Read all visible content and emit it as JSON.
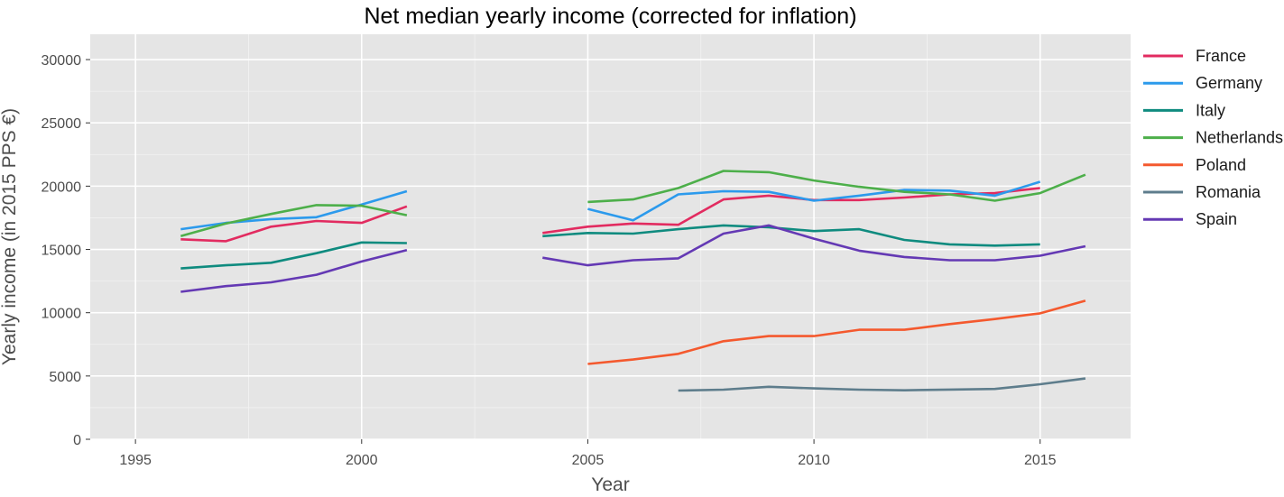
{
  "chart_data": {
    "type": "line",
    "title": "Net median yearly income (corrected for inflation)",
    "xlabel": "Year",
    "ylabel": "Yearly income (in 2015 PPS €)",
    "xlim": [
      1994,
      2017
    ],
    "ylim": [
      0,
      32000
    ],
    "x_ticks": [
      1995,
      2000,
      2005,
      2010,
      2015
    ],
    "y_ticks": [
      0,
      5000,
      10000,
      15000,
      20000,
      25000,
      30000
    ],
    "grid": true,
    "legend_position": "right",
    "series": [
      {
        "name": "France",
        "color": "#e22b60",
        "x": [
          1996,
          1997,
          1998,
          1999,
          2000,
          2001,
          2004,
          2005,
          2006,
          2007,
          2008,
          2009,
          2010,
          2011,
          2012,
          2013,
          2014,
          2015
        ],
        "values": [
          15800,
          15650,
          16800,
          17250,
          17100,
          18400,
          16300,
          16800,
          17050,
          16950,
          18950,
          19250,
          18900,
          18900,
          19100,
          19350,
          19450,
          19850
        ]
      },
      {
        "name": "Germany",
        "color": "#2c9aec",
        "x": [
          1996,
          1997,
          1998,
          1999,
          2000,
          2001,
          2005,
          2006,
          2007,
          2008,
          2009,
          2010,
          2011,
          2012,
          2013,
          2014,
          2015
        ],
        "values": [
          16600,
          17100,
          17400,
          17550,
          18550,
          19600,
          18200,
          17300,
          19350,
          19600,
          19550,
          18850,
          19250,
          19700,
          19650,
          19250,
          20350
        ]
      },
      {
        "name": "Italy",
        "color": "#0f8b7f",
        "x": [
          1996,
          1997,
          1998,
          1999,
          2000,
          2001,
          2004,
          2005,
          2006,
          2007,
          2008,
          2009,
          2010,
          2011,
          2012,
          2013,
          2014,
          2015
        ],
        "values": [
          13500,
          13750,
          13950,
          14700,
          15550,
          15500,
          16050,
          16300,
          16250,
          16600,
          16900,
          16750,
          16450,
          16600,
          15750,
          15400,
          15300,
          15400
        ]
      },
      {
        "name": "Netherlands",
        "color": "#4daf4a",
        "x": [
          1996,
          1997,
          1998,
          1999,
          2000,
          2001,
          2005,
          2006,
          2007,
          2008,
          2009,
          2010,
          2011,
          2012,
          2013,
          2014,
          2015,
          2016
        ],
        "values": [
          16050,
          17050,
          17800,
          18500,
          18450,
          17700,
          18750,
          18950,
          19850,
          21200,
          21100,
          20450,
          19950,
          19550,
          19350,
          18850,
          19450,
          20900
        ]
      },
      {
        "name": "Poland",
        "color": "#f4592e",
        "x": [
          2005,
          2006,
          2007,
          2008,
          2009,
          2010,
          2011,
          2012,
          2013,
          2014,
          2015,
          2016
        ],
        "values": [
          5950,
          6300,
          6750,
          7750,
          8150,
          8150,
          8650,
          8650,
          9100,
          9500,
          9950,
          10950
        ]
      },
      {
        "name": "Romania",
        "color": "#5e7d8c",
        "x": [
          2007,
          2008,
          2009,
          2010,
          2011,
          2012,
          2013,
          2014,
          2015,
          2016
        ],
        "values": [
          3850,
          3920,
          4150,
          4020,
          3920,
          3870,
          3930,
          3980,
          4350,
          4800
        ]
      },
      {
        "name": "Spain",
        "color": "#6439b4",
        "x": [
          1996,
          1997,
          1998,
          1999,
          2000,
          2001,
          2004,
          2005,
          2006,
          2007,
          2008,
          2009,
          2010,
          2011,
          2012,
          2013,
          2014,
          2015,
          2016
        ],
        "values": [
          11650,
          12100,
          12400,
          13000,
          14050,
          14950,
          14350,
          13750,
          14150,
          14300,
          16250,
          16900,
          15850,
          14900,
          14400,
          14150,
          14150,
          14500,
          15250
        ]
      }
    ]
  }
}
